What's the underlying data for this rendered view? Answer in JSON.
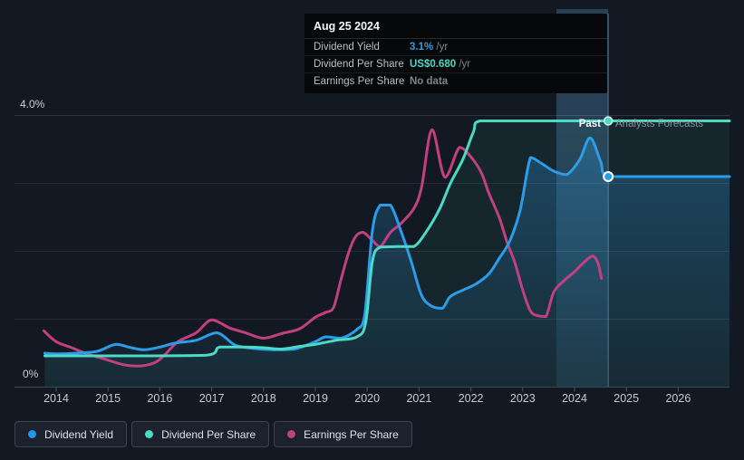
{
  "tooltip": {
    "date": "Aug 25 2024",
    "rows": [
      {
        "label": "Dividend Yield",
        "value": "3.1%",
        "suffix": " /yr",
        "value_color": "#2f9de3"
      },
      {
        "label": "Dividend Per Share",
        "value": "US$0.680",
        "suffix": " /yr",
        "value_color": "#4bdac5"
      },
      {
        "label": "Earnings Per Share",
        "value": "No data",
        "suffix": "",
        "value_color": "#7b838e"
      }
    ]
  },
  "axis": {
    "y_top_label": "4.0%",
    "y_bottom_label": "0%",
    "x_labels": [
      "2014",
      "2015",
      "2016",
      "2017",
      "2018",
      "2019",
      "2020",
      "2021",
      "2022",
      "2023",
      "2024",
      "2025",
      "2026"
    ]
  },
  "annotations": {
    "past_label": "Past",
    "forecast_label": "Analysts Forecasts"
  },
  "legend": [
    {
      "label": "Dividend Yield",
      "color": "#1e9be8"
    },
    {
      "label": "Dividend Per Share",
      "color": "#4bdac5"
    },
    {
      "label": "Earnings Per Share",
      "color": "#c2407f"
    }
  ],
  "chart_data": {
    "type": "line",
    "x_unit": "year",
    "xlim": [
      2013.7,
      2027.0
    ],
    "ylim_percent": [
      0,
      4
    ],
    "grid_percent_lines": [
      4,
      3,
      2,
      1
    ],
    "x_tick_labels": [
      "2014",
      "2015",
      "2016",
      "2017",
      "2018",
      "2019",
      "2020",
      "2021",
      "2022",
      "2023",
      "2024",
      "2025",
      "2026"
    ],
    "past_forecast_divider": {
      "date": "Aug 25 2024",
      "year": 2024.65
    },
    "highlight_band_years": [
      2023.65,
      2024.65
    ],
    "legend_position": "bottom-left",
    "series": [
      {
        "name": "Dividend Yield",
        "color": "#2D9CE7",
        "unit": "%",
        "area_fill": true,
        "points": [
          [
            2013.78,
            0.5
          ],
          [
            2014.0,
            0.49
          ],
          [
            2014.4,
            0.5
          ],
          [
            2014.8,
            0.53
          ],
          [
            2015.15,
            0.63
          ],
          [
            2015.45,
            0.58
          ],
          [
            2015.7,
            0.55
          ],
          [
            2016.0,
            0.59
          ],
          [
            2016.3,
            0.65
          ],
          [
            2016.7,
            0.69
          ],
          [
            2017.1,
            0.8
          ],
          [
            2017.45,
            0.62
          ],
          [
            2017.8,
            0.57
          ],
          [
            2018.2,
            0.55
          ],
          [
            2018.6,
            0.56
          ],
          [
            2019.0,
            0.67
          ],
          [
            2019.2,
            0.74
          ],
          [
            2019.5,
            0.72
          ],
          [
            2019.8,
            0.85
          ],
          [
            2019.95,
            1.05
          ],
          [
            2020.1,
            2.3
          ],
          [
            2020.25,
            2.68
          ],
          [
            2020.45,
            2.68
          ],
          [
            2020.65,
            2.3
          ],
          [
            2020.85,
            1.85
          ],
          [
            2021.05,
            1.35
          ],
          [
            2021.25,
            1.19
          ],
          [
            2021.45,
            1.16
          ],
          [
            2021.6,
            1.33
          ],
          [
            2021.85,
            1.43
          ],
          [
            2022.1,
            1.52
          ],
          [
            2022.35,
            1.67
          ],
          [
            2022.55,
            1.9
          ],
          [
            2022.75,
            2.15
          ],
          [
            2022.95,
            2.6
          ],
          [
            2023.15,
            3.38
          ],
          [
            2023.35,
            3.3
          ],
          [
            2023.6,
            3.18
          ],
          [
            2023.85,
            3.13
          ],
          [
            2024.1,
            3.35
          ],
          [
            2024.3,
            3.67
          ],
          [
            2024.5,
            3.33
          ],
          [
            2024.65,
            3.1
          ],
          [
            2025.5,
            3.1
          ],
          [
            2026.99,
            3.1
          ]
        ],
        "forecast_value_pct": 3.1
      },
      {
        "name": "Dividend Per Share",
        "color": "#4BDAC5",
        "unit": "US$",
        "area_fill": true,
        "points": [
          [
            2013.78,
            0.46
          ],
          [
            2014.5,
            0.46
          ],
          [
            2015.5,
            0.46
          ],
          [
            2016.9,
            0.47
          ],
          [
            2017.15,
            0.59
          ],
          [
            2017.6,
            0.59
          ],
          [
            2018.0,
            0.58
          ],
          [
            2018.35,
            0.56
          ],
          [
            2018.7,
            0.6
          ],
          [
            2019.0,
            0.63
          ],
          [
            2019.4,
            0.69
          ],
          [
            2019.8,
            0.74
          ],
          [
            2019.97,
            0.95
          ],
          [
            2020.1,
            1.85
          ],
          [
            2020.25,
            2.06
          ],
          [
            2020.6,
            2.07
          ],
          [
            2020.9,
            2.07
          ],
          [
            2021.15,
            2.3
          ],
          [
            2021.4,
            2.63
          ],
          [
            2021.6,
            2.99
          ],
          [
            2021.85,
            3.36
          ],
          [
            2022.05,
            3.76
          ],
          [
            2022.18,
            3.92
          ],
          [
            2023.0,
            3.92
          ],
          [
            2024.65,
            3.92
          ],
          [
            2026.99,
            3.92
          ]
        ],
        "values_usd": [
          0.08,
          0.08,
          0.08,
          0.082,
          0.102,
          0.102,
          0.101,
          0.097,
          0.104,
          0.109,
          0.12,
          0.128,
          0.165,
          0.321,
          0.357,
          0.359,
          0.359,
          0.399,
          0.456,
          0.519,
          0.583,
          0.652,
          0.68,
          0.68,
          0.68,
          0.68
        ],
        "current_value_usd": 0.68
      },
      {
        "name": "Earnings Per Share",
        "color": "#C2407F",
        "unit": "%",
        "area_fill": false,
        "points": [
          [
            2013.76,
            0.83
          ],
          [
            2014.0,
            0.67
          ],
          [
            2014.3,
            0.58
          ],
          [
            2014.6,
            0.49
          ],
          [
            2014.95,
            0.41
          ],
          [
            2015.3,
            0.33
          ],
          [
            2015.6,
            0.31
          ],
          [
            2015.9,
            0.36
          ],
          [
            2016.1,
            0.48
          ],
          [
            2016.35,
            0.67
          ],
          [
            2016.7,
            0.8
          ],
          [
            2017.0,
            0.99
          ],
          [
            2017.35,
            0.87
          ],
          [
            2017.65,
            0.8
          ],
          [
            2018.0,
            0.72
          ],
          [
            2018.35,
            0.79
          ],
          [
            2018.7,
            0.86
          ],
          [
            2019.0,
            1.03
          ],
          [
            2019.2,
            1.1
          ],
          [
            2019.35,
            1.17
          ],
          [
            2019.5,
            1.6
          ],
          [
            2019.65,
            2.0
          ],
          [
            2019.78,
            2.22
          ],
          [
            2019.92,
            2.28
          ],
          [
            2020.1,
            2.16
          ],
          [
            2020.25,
            2.07
          ],
          [
            2020.45,
            2.28
          ],
          [
            2020.65,
            2.41
          ],
          [
            2020.9,
            2.63
          ],
          [
            2021.05,
            2.95
          ],
          [
            2021.25,
            3.79
          ],
          [
            2021.5,
            3.09
          ],
          [
            2021.78,
            3.53
          ],
          [
            2022.0,
            3.39
          ],
          [
            2022.2,
            3.16
          ],
          [
            2022.35,
            2.85
          ],
          [
            2022.55,
            2.49
          ],
          [
            2022.7,
            2.13
          ],
          [
            2022.85,
            1.83
          ],
          [
            2023.0,
            1.43
          ],
          [
            2023.15,
            1.12
          ],
          [
            2023.3,
            1.05
          ],
          [
            2023.45,
            1.04
          ],
          [
            2023.6,
            1.4
          ],
          [
            2023.8,
            1.57
          ],
          [
            2024.0,
            1.7
          ],
          [
            2024.2,
            1.85
          ],
          [
            2024.35,
            1.93
          ],
          [
            2024.45,
            1.83
          ],
          [
            2024.52,
            1.6
          ]
        ],
        "forecast": "No data"
      }
    ],
    "markers": [
      {
        "series": "Dividend Yield",
        "year": 2024.65,
        "pct": 3.1,
        "color": "#2D9CE7"
      },
      {
        "series": "Dividend Per Share",
        "year": 2024.65,
        "pct": 3.92,
        "usd": 0.68,
        "color": "#4BDAC5"
      }
    ]
  }
}
